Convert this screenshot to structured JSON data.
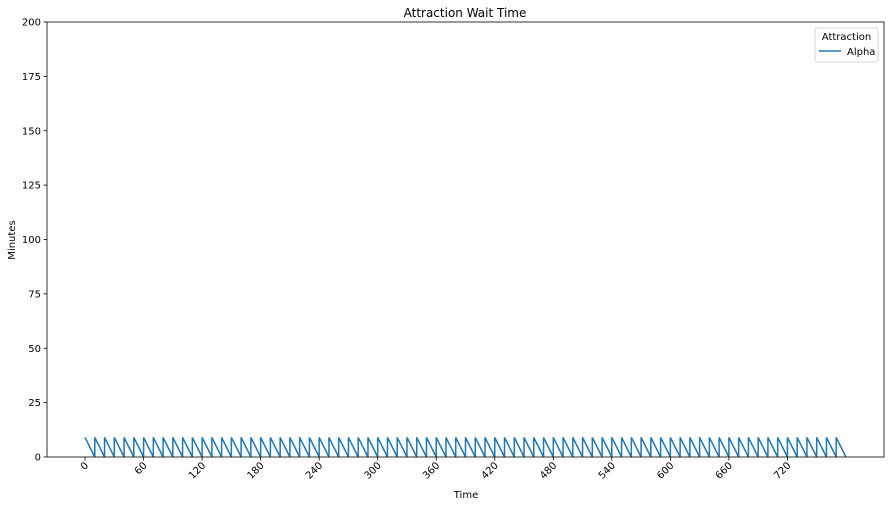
{
  "chart_data": {
    "type": "line",
    "title": "Attraction Wait Time",
    "xlabel": "Time",
    "ylabel": "Minutes",
    "xlim": [
      -39,
      819
    ],
    "ylim": [
      0,
      200
    ],
    "x_ticks": [
      0,
      60,
      120,
      180,
      240,
      300,
      360,
      420,
      480,
      540,
      600,
      660,
      720
    ],
    "y_ticks": [
      0,
      25,
      50,
      75,
      100,
      125,
      150,
      175,
      200
    ],
    "x_tick_rotation": 45,
    "grid": false,
    "legend": {
      "title": "Attraction",
      "placement": "top-right"
    },
    "pattern": {
      "period": 10,
      "peak": 9,
      "start": 0,
      "end": 780
    },
    "series": [
      {
        "name": "Alpha",
        "color": "#1f77b4"
      }
    ]
  }
}
